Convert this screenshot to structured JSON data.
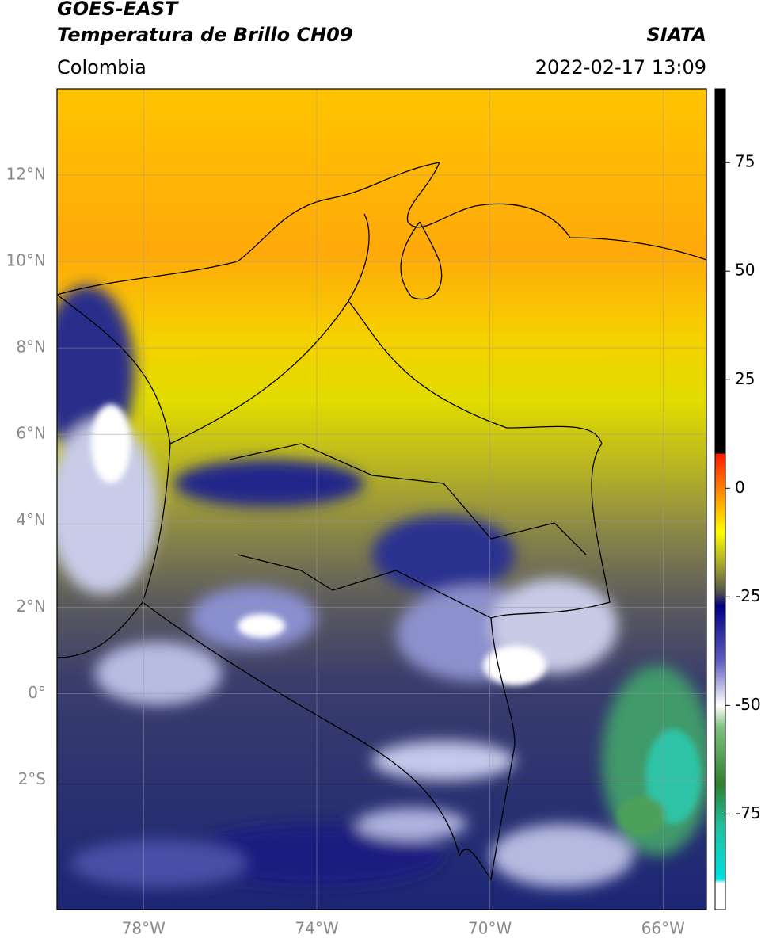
{
  "header": {
    "title": "GOES-EAST",
    "subtitle": "Temperatura de Brillo CH09",
    "source": "SIATA",
    "region": "Colombia",
    "datetime": "2022-02-17 13:09"
  },
  "map": {
    "latlim": [
      -5,
      14
    ],
    "lonlim": [
      -80,
      -65
    ],
    "lat_ticks": [
      {
        "value": 12,
        "label": "12°N"
      },
      {
        "value": 10,
        "label": "10°N"
      },
      {
        "value": 8,
        "label": "8°N"
      },
      {
        "value": 6,
        "label": "6°N"
      },
      {
        "value": 4,
        "label": "4°N"
      },
      {
        "value": 2,
        "label": "2°N"
      },
      {
        "value": 0,
        "label": "0°"
      },
      {
        "value": -2,
        "label": "2°S"
      }
    ],
    "lon_ticks": [
      {
        "value": -78,
        "label": "78°W"
      },
      {
        "value": -74,
        "label": "74°W"
      },
      {
        "value": -70,
        "label": "70°W"
      },
      {
        "value": -66,
        "label": "66°W"
      }
    ]
  },
  "colorbar": {
    "lim": [
      -97,
      92
    ],
    "ticks": [
      75,
      50,
      25,
      0,
      -25,
      -50,
      -75
    ]
  }
}
